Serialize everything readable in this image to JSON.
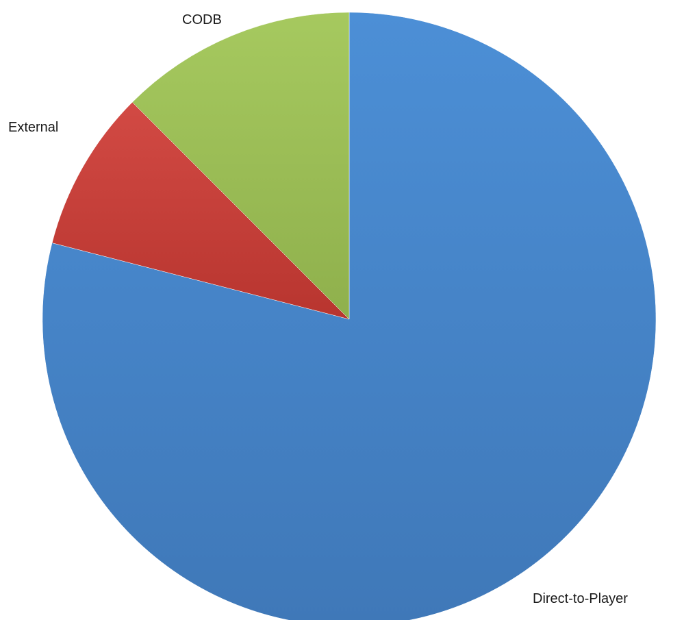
{
  "chart_data": {
    "type": "pie",
    "title": "",
    "start_angle_deg": 90,
    "direction": "clockwise",
    "slices": [
      {
        "label": "Direct-to-Player",
        "value": 79.0,
        "color": "#4a86c8"
      },
      {
        "label": "External",
        "value": 8.5,
        "color": "#c9413c"
      },
      {
        "label": "CODB",
        "value": 12.5,
        "color": "#9bbb59"
      }
    ],
    "legend": "none",
    "labels": "outside"
  }
}
